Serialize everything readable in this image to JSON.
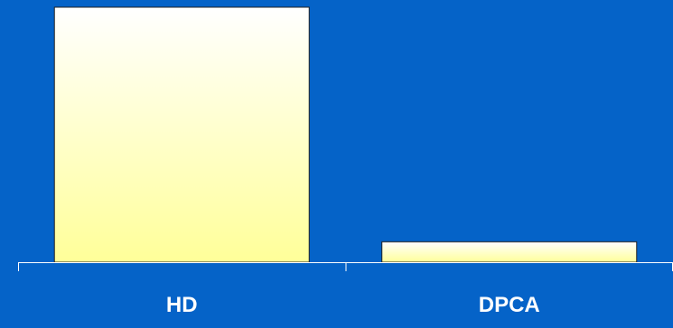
{
  "colors": {
    "background": "#0563c8",
    "bar_top": "#ffffff",
    "bar_bottom": "#ffff99",
    "axis": "#ffffff",
    "text": "#ffffff"
  },
  "chart_data": {
    "type": "bar",
    "categories": [
      "HD",
      "DPCA"
    ],
    "values": [
      100,
      8
    ],
    "title": "",
    "xlabel": "",
    "ylabel": "",
    "ylim": [
      0,
      100
    ],
    "grid": false
  }
}
